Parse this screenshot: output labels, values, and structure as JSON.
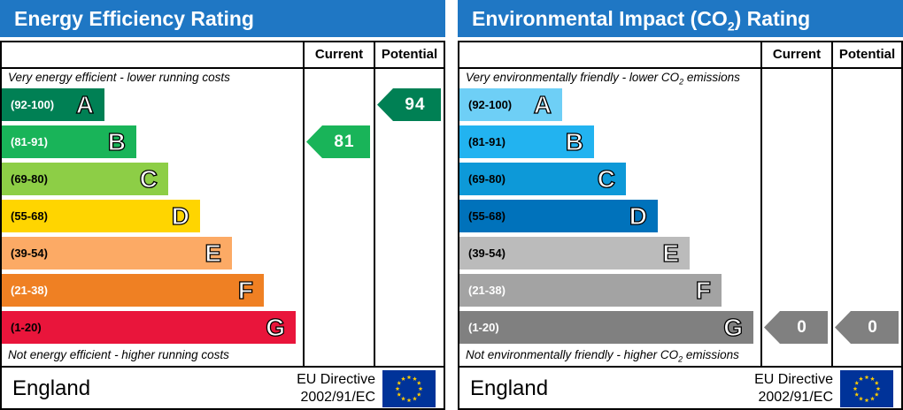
{
  "left": {
    "title": "Energy Efficiency Rating",
    "col_current": "Current",
    "col_potential": "Potential",
    "top_note": "Very energy efficient - lower running costs",
    "bottom_note": "Not energy efficient - higher running costs",
    "country": "England",
    "directive_line1": "EU Directive",
    "directive_line2": "2002/91/EC"
  },
  "right": {
    "title_pre": "Environmental Impact (CO",
    "title_sub": "2",
    "title_post": ") Rating",
    "col_current": "Current",
    "col_potential": "Potential",
    "top_note_pre": "Very environmentally friendly - lower CO",
    "top_note_sub": "2",
    "top_note_post": " emissions",
    "bottom_note_pre": "Not environmentally friendly - higher CO",
    "bottom_note_sub": "2",
    "bottom_note_post": " emissions",
    "country": "England",
    "directive_line1": "EU Directive",
    "directive_line2": "2002/91/EC"
  },
  "chart_data": [
    {
      "type": "bar",
      "title": "Energy Efficiency Rating",
      "bands": [
        {
          "letter": "A",
          "range": "(92-100)",
          "color": "#008054"
        },
        {
          "letter": "B",
          "range": "(81-91)",
          "color": "#19b459"
        },
        {
          "letter": "C",
          "range": "(69-80)",
          "color": "#8dce46"
        },
        {
          "letter": "D",
          "range": "(55-68)",
          "color": "#ffd500"
        },
        {
          "letter": "E",
          "range": "(39-54)",
          "color": "#fcaa65"
        },
        {
          "letter": "F",
          "range": "(21-38)",
          "color": "#ef8023"
        },
        {
          "letter": "G",
          "range": "(1-20)",
          "color": "#e9153b"
        }
      ],
      "current": {
        "value": 81,
        "band": "B",
        "color": "#19b459"
      },
      "potential": {
        "value": 94,
        "band": "A",
        "color": "#008054"
      }
    },
    {
      "type": "bar",
      "title": "Environmental Impact (CO2) Rating",
      "bands": [
        {
          "letter": "A",
          "range": "(92-100)",
          "color": "#6ecff6"
        },
        {
          "letter": "B",
          "range": "(81-91)",
          "color": "#22b3f0"
        },
        {
          "letter": "C",
          "range": "(69-80)",
          "color": "#0d99d8"
        },
        {
          "letter": "D",
          "range": "(55-68)",
          "color": "#0072bb"
        },
        {
          "letter": "E",
          "range": "(39-54)",
          "color": "#bbbbbb"
        },
        {
          "letter": "F",
          "range": "(21-38)",
          "color": "#a3a3a3"
        },
        {
          "letter": "G",
          "range": "(1-20)",
          "color": "#808080"
        }
      ],
      "current": {
        "value": 0,
        "band": "G",
        "color": "#808080"
      },
      "potential": {
        "value": 0,
        "band": "G",
        "color": "#808080"
      }
    }
  ]
}
